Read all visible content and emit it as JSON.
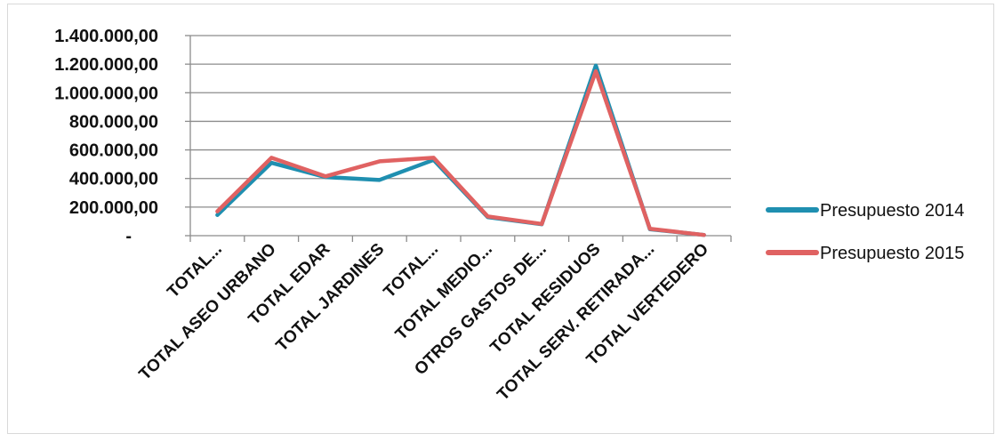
{
  "chart_data": {
    "type": "line",
    "title": "",
    "xlabel": "",
    "ylabel": "",
    "ylim": [
      0,
      1400000
    ],
    "yticks": [
      {
        "value": 0,
        "label": "-"
      },
      {
        "value": 200000,
        "label": "200.000,00"
      },
      {
        "value": 400000,
        "label": "400.000,00"
      },
      {
        "value": 600000,
        "label": "600.000,00"
      },
      {
        "value": 800000,
        "label": "800.000,00"
      },
      {
        "value": 1000000,
        "label": "1.000.000,00"
      },
      {
        "value": 1200000,
        "label": "1.200.000,00"
      },
      {
        "value": 1400000,
        "label": "1.400.000,00"
      }
    ],
    "categories": [
      "TOTAL...",
      "TOTAL ASEO URBANO",
      "TOTAL EDAR",
      "TOTAL JARDINES",
      "TOTAL...",
      "TOTAL MEDIO...",
      "OTROS GASTOS DE...",
      "TOTAL RESIDUOS",
      "TOTAL SERV. RETIRADA...",
      "TOTAL VERTEDERO"
    ],
    "grid": true,
    "legend_position": "right",
    "series": [
      {
        "name": "Presupuesto 2014",
        "color": "#1f8fb0",
        "values": [
          145000,
          510000,
          410000,
          390000,
          530000,
          130000,
          80000,
          1190000,
          45000,
          5000
        ]
      },
      {
        "name": "Presupuesto 2015",
        "color": "#e06262",
        "values": [
          170000,
          545000,
          415000,
          520000,
          545000,
          135000,
          82000,
          1150000,
          48000,
          5000
        ]
      }
    ]
  }
}
